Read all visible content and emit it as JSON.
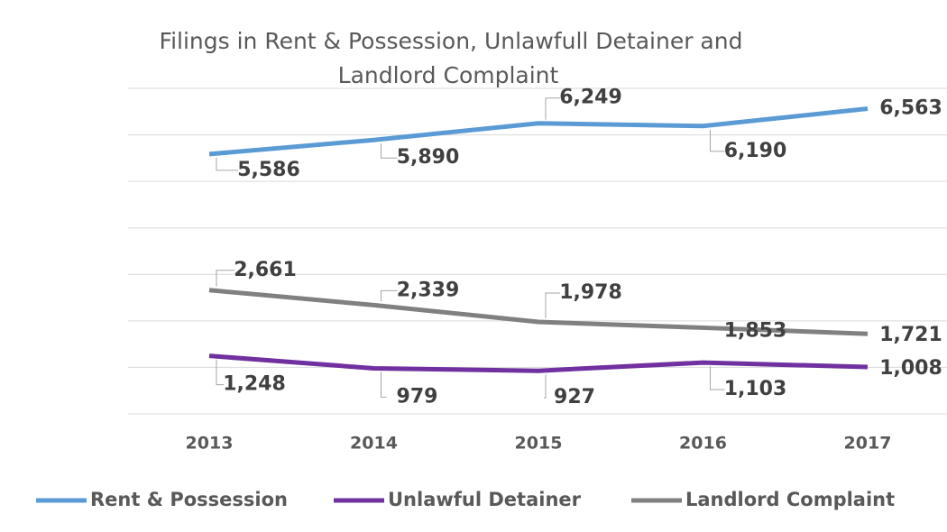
{
  "chart_data": {
    "type": "line",
    "title": "Filings in Rent & Possession, Unlawfull Detainer and Landlord Complaint",
    "categories": [
      "2013",
      "2014",
      "2015",
      "2016",
      "2017"
    ],
    "series": [
      {
        "name": "Rent & Possession",
        "color": "#5b9bd5",
        "values": [
          5586,
          5890,
          6249,
          6190,
          6563
        ],
        "value_labels": [
          "5,586",
          "5,890",
          "6,249",
          "6,190",
          "6,563"
        ]
      },
      {
        "name": "Unlawful Detainer",
        "color": "#7030a0",
        "values": [
          1248,
          979,
          927,
          1103,
          1008
        ],
        "value_labels": [
          "1,248",
          "979",
          "927",
          "1,103",
          "1,008"
        ]
      },
      {
        "name": "Landlord Complaint",
        "color": "#808080",
        "values": [
          2661,
          2339,
          1978,
          1853,
          1721
        ],
        "value_labels": [
          "2,661",
          "2,339",
          "1,978",
          "1,853",
          "1,721"
        ]
      }
    ],
    "ylim": [
      0,
      7000
    ],
    "yticks": [
      0,
      1000,
      2000,
      3000,
      4000,
      5000,
      6000,
      7000
    ],
    "grid": true,
    "legend": "bottom"
  }
}
